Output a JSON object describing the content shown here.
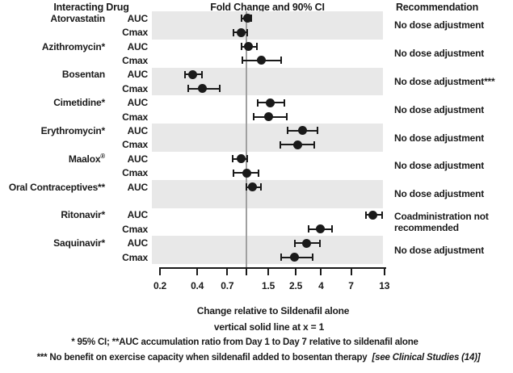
{
  "figure": {
    "headers": {
      "drug_col": "Interacting Drug",
      "plot_col": "Fold Change and 90% CI",
      "rec_col": "Recommendation"
    },
    "footer": {
      "xlabel": "Change relative to Sildenafil alone",
      "refline_note": "vertical solid line at x = 1",
      "footnote1": "* 95% CI; **AUC accumulation ratio from Day 1 to Day 7 relative to sildenafil alone",
      "footnote2": "*** No benefit on exercise capacity when sildenafil added to bosentan therapy",
      "footnote2_ref": "[see Clinical Studies (14)]"
    }
  },
  "chart_data": {
    "type": "scatter",
    "variant": "forest-plot",
    "title": "Fold Change and 90% CI",
    "xlabel": "Change relative to Sildenafil alone",
    "x_scale": "log",
    "xlim": [
      0.2,
      13
    ],
    "x_ticks": [
      0.2,
      0.4,
      0.7,
      1,
      1.5,
      2.5,
      4,
      7,
      13
    ],
    "x_tick_labels": [
      "0.2",
      "0.4",
      "0.7",
      "",
      "1.5",
      "2.5",
      "4",
      "7",
      "13"
    ],
    "reference_line_x": 1,
    "ci_level": "90% CI",
    "legend_position": "none",
    "grid": false,
    "colors": {
      "band": "#e8e8e8",
      "marker": "#1a1a1a",
      "reference_line": "#a0a0a0",
      "text": "#1a1a1a"
    },
    "drugs": [
      {
        "name": "Atorvastatin",
        "shaded": true,
        "recommendation": "No dose adjustment",
        "rows": [
          {
            "metric": "AUC",
            "value": 1.02,
            "lo": 0.91,
            "hi": 1.1
          },
          {
            "metric": "Cmax",
            "value": 0.9,
            "lo": 0.79,
            "hi": 1.02
          }
        ]
      },
      {
        "name": "Azithromycin*",
        "shaded": false,
        "recommendation": "No dose adjustment",
        "rows": [
          {
            "metric": "AUC",
            "value": 1.04,
            "lo": 0.91,
            "hi": 1.22
          },
          {
            "metric": "Cmax",
            "value": 1.31,
            "lo": 0.92,
            "hi": 1.92
          }
        ]
      },
      {
        "name": "Bosentan",
        "shaded": true,
        "recommendation": "No dose adjustment***",
        "rows": [
          {
            "metric": "AUC",
            "value": 0.37,
            "lo": 0.32,
            "hi": 0.44
          },
          {
            "metric": "Cmax",
            "value": 0.44,
            "lo": 0.34,
            "hi": 0.61
          }
        ]
      },
      {
        "name": "Cimetidine*",
        "shaded": false,
        "recommendation": "No dose adjustment",
        "rows": [
          {
            "metric": "AUC",
            "value": 1.55,
            "lo": 1.23,
            "hi": 2.03
          },
          {
            "metric": "Cmax",
            "value": 1.52,
            "lo": 1.14,
            "hi": 2.11
          }
        ]
      },
      {
        "name": "Erythromycin*",
        "shaded": true,
        "recommendation": "No dose adjustment",
        "rows": [
          {
            "metric": "AUC",
            "value": 2.85,
            "lo": 2.16,
            "hi": 3.75
          },
          {
            "metric": "Cmax",
            "value": 2.61,
            "lo": 1.88,
            "hi": 3.53
          }
        ]
      },
      {
        "name": "Maalox®",
        "shaded": false,
        "recommendation": "No dose adjustment",
        "rows": [
          {
            "metric": "AUC",
            "value": 0.9,
            "lo": 0.77,
            "hi": 1.02
          },
          {
            "metric": "Cmax",
            "value": 1.0,
            "lo": 0.79,
            "hi": 1.26
          }
        ]
      },
      {
        "name": "Oral Contraceptives**",
        "shaded": true,
        "recommendation": "No dose adjustment",
        "rows": [
          {
            "metric": "AUC",
            "value": 1.12,
            "lo": 1.0,
            "hi": 1.31
          }
        ]
      },
      {
        "name": "Ritonavir*",
        "shaded": false,
        "recommendation": "Coadministration not recommended",
        "rows": [
          {
            "metric": "AUC",
            "value": 10.5,
            "lo": 9.2,
            "hi": 12.4
          },
          {
            "metric": "Cmax",
            "value": 3.94,
            "lo": 3.18,
            "hi": 4.94
          }
        ]
      },
      {
        "name": "Saquinavir*",
        "shaded": true,
        "recommendation": "No dose adjustment",
        "rows": [
          {
            "metric": "AUC",
            "value": 3.07,
            "lo": 2.45,
            "hi": 3.94
          },
          {
            "metric": "Cmax",
            "value": 2.43,
            "lo": 1.9,
            "hi": 3.4
          }
        ]
      }
    ]
  }
}
